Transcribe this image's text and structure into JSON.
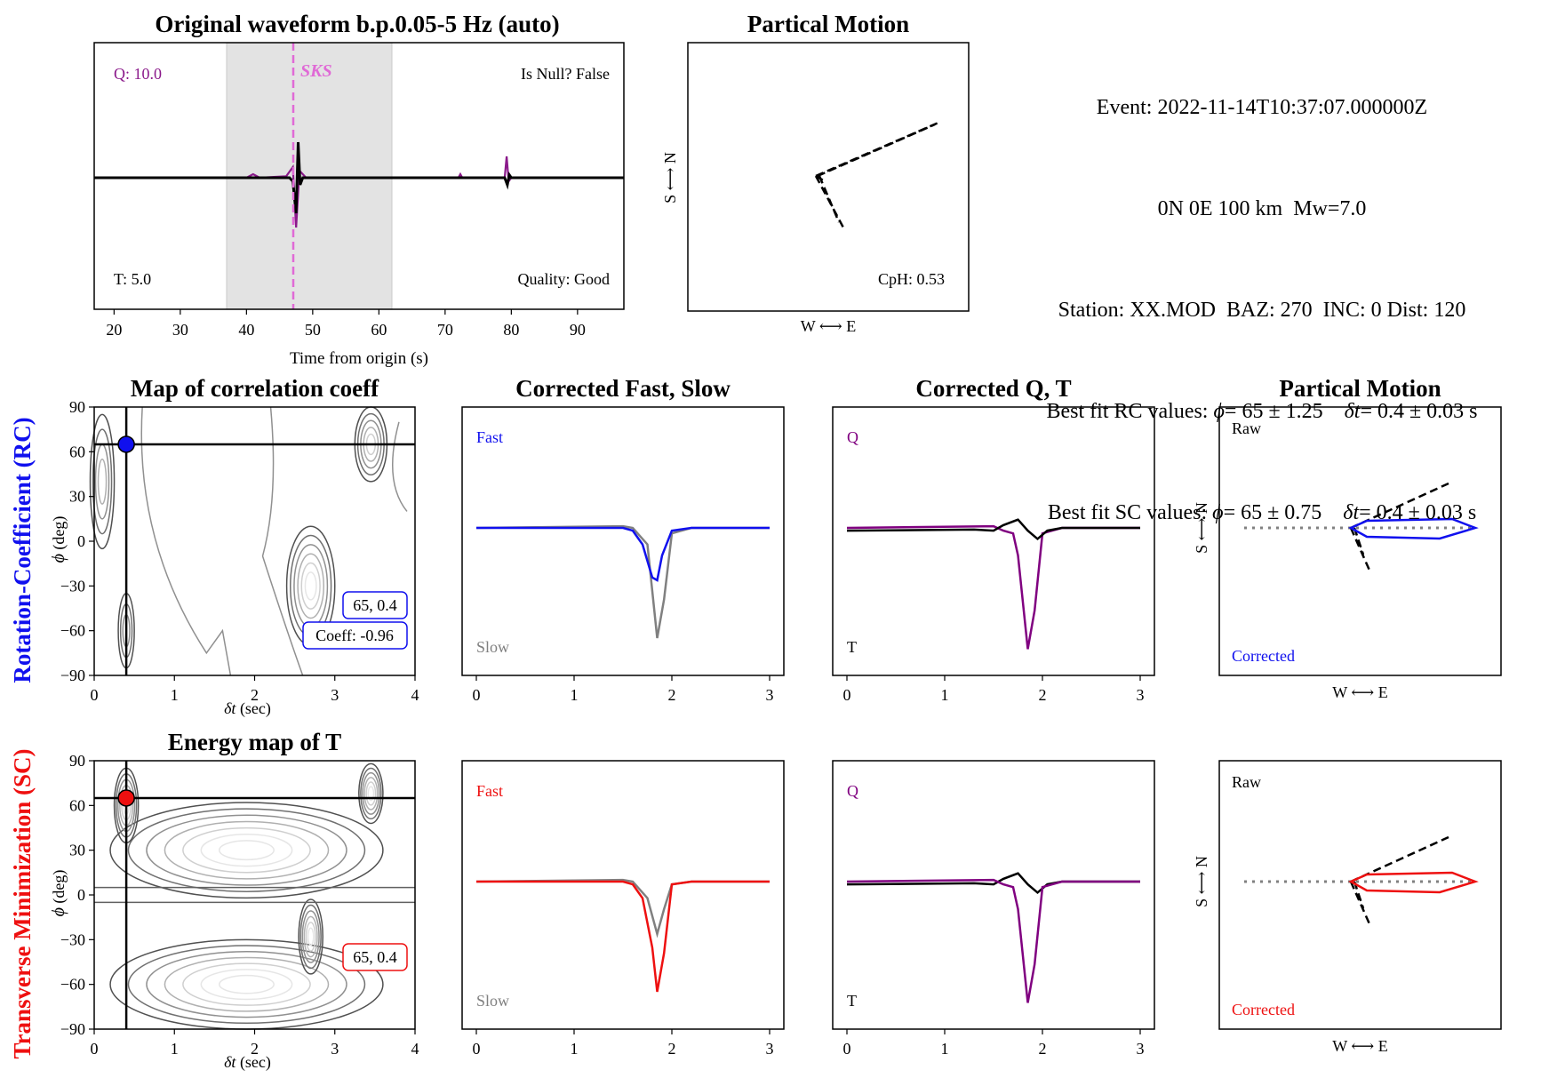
{
  "top_waveform": {
    "title": "Original waveform b.p.0.05-5 Hz (auto)",
    "xlabel": "Time from origin (s)",
    "xticks": [
      "20",
      "30",
      "40",
      "50",
      "60",
      "70",
      "80",
      "90"
    ],
    "q_label": "Q: 10.0",
    "t_label": "T: 5.0",
    "null_label": "Is Null? False",
    "quality_label": "Quality: Good",
    "phase_label": "SKS"
  },
  "top_motion": {
    "title": "Partical Motion",
    "xlabel": "W ⟷ E",
    "ylabel": "S ⟷ N",
    "cph_label": "CpH: 0.53"
  },
  "event_info": {
    "line1": "Event: 2022-11-14T10:37:07.000000Z",
    "line2": "0N 0E 100 km  Mw=7.0",
    "line3": "Station: XX.MOD  BAZ: 270  INC: 0 Dist: 120",
    "line4_prefix": "Best fit RC values: ",
    "line4_phi": "ϕ",
    "line4_mid": "= 65 ± 1.25    ",
    "line4_dt": "δt",
    "line4_end": "= 0.4 ± 0.03 s",
    "line5_prefix": "Best fit SC values: ",
    "line5_phi": "ϕ",
    "line5_mid": "= 65 ± 0.75    ",
    "line5_dt": "δt",
    "line5_end": "= 0.4 ± 0.03 s"
  },
  "rows": [
    {
      "row_label": "Rotation-Coefficient (RC)",
      "color": "#1010ee",
      "map_title": "Map of correlation coeff",
      "ylabel_phi": "ϕ",
      "ylabel_unit": "(deg)",
      "xlabel_dt": "δt",
      "xlabel_unit": "(sec)",
      "yticks": [
        "90",
        "60",
        "30",
        "0",
        "−30",
        "−60",
        "−90"
      ],
      "xticks_map": [
        "0",
        "1",
        "2",
        "3",
        "4"
      ],
      "best_box": "65, 0.4",
      "coeff_box": "Coeff: -0.96",
      "fs_title": "Corrected Fast, Slow",
      "fast_label": "Fast",
      "slow_label": "Slow",
      "qt_title": "Corrected Q, T",
      "q_label": "Q",
      "t_label": "T",
      "pm_title": "Partical Motion",
      "raw_label": "Raw",
      "corrected_label": "Corrected",
      "pm_xlabel": "W ⟷ E",
      "pm_ylabel": "S ⟷ N",
      "xticks_trace": [
        "0",
        "1",
        "2",
        "3"
      ]
    },
    {
      "row_label": "Transverse Minimization (SC)",
      "color": "#ee1010",
      "map_title": "Energy map of T",
      "ylabel_phi": "ϕ",
      "ylabel_unit": "(deg)",
      "xlabel_dt": "δt",
      "xlabel_unit": "(sec)",
      "yticks": [
        "90",
        "60",
        "30",
        "0",
        "−30",
        "−60",
        "−90"
      ],
      "xticks_map": [
        "0",
        "1",
        "2",
        "3",
        "4"
      ],
      "best_box": "65, 0.4",
      "coeff_box": "",
      "fs_title": "",
      "fast_label": "Fast",
      "slow_label": "Slow",
      "qt_title": "",
      "q_label": "Q",
      "t_label": "T",
      "pm_title": "",
      "raw_label": "Raw",
      "corrected_label": "Corrected",
      "pm_xlabel": "W ⟷ E",
      "pm_ylabel": "S ⟷ N",
      "xticks_trace": [
        "0",
        "1",
        "2",
        "3"
      ]
    }
  ],
  "chart_data": [
    {
      "type": "line",
      "title": "Original waveform b.p.0.05-5 Hz (auto)",
      "xlabel": "Time from origin (s)",
      "xlim": [
        17,
        97
      ],
      "window": [
        37,
        62
      ],
      "sks_pick": 47,
      "series": [
        {
          "name": "Q",
          "color": "#8b1a8b",
          "points": [
            [
              17,
              0
            ],
            [
              40,
              0
            ],
            [
              41,
              0.05
            ],
            [
              42,
              0
            ],
            [
              46,
              0.02
            ],
            [
              47,
              0.15
            ],
            [
              47.5,
              -0.7
            ],
            [
              48,
              0.1
            ],
            [
              49,
              0
            ],
            [
              72,
              0
            ],
            [
              72.3,
              0.05
            ],
            [
              72.6,
              0
            ],
            [
              79,
              0
            ],
            [
              79.3,
              0.3
            ],
            [
              79.6,
              -0.05
            ],
            [
              80,
              0
            ],
            [
              97,
              0
            ]
          ]
        },
        {
          "name": "T",
          "color": "#000000",
          "points": [
            [
              17,
              0
            ],
            [
              46.5,
              0
            ],
            [
              47,
              -0.05
            ],
            [
              47.5,
              -0.5
            ],
            [
              47.8,
              0.5
            ],
            [
              48.1,
              -0.1
            ],
            [
              48.5,
              0
            ],
            [
              79,
              0
            ],
            [
              79.4,
              -0.1
            ],
            [
              79.7,
              0.04
            ],
            [
              80,
              0
            ],
            [
              97,
              0
            ]
          ]
        }
      ]
    },
    {
      "type": "line",
      "title": "Partical Motion",
      "series": [
        {
          "name": "raw",
          "style": "dashed",
          "points": [
            [
              0,
              0
            ],
            [
              0.9,
              0.45
            ],
            [
              0.05,
              -0.02
            ],
            [
              0.2,
              -0.4
            ],
            [
              0.05,
              -0.05
            ],
            [
              0,
              0
            ]
          ]
        }
      ]
    },
    {
      "type": "heatmap",
      "title": "Map of correlation coeff",
      "xlabel": "δt (sec)",
      "ylabel": "ϕ (deg)",
      "xlim": [
        0,
        4
      ],
      "ylim": [
        -90,
        90
      ],
      "best": {
        "dt": 0.4,
        "phi": 65
      },
      "coeff": -0.96
    },
    {
      "type": "line",
      "title": "Corrected Fast, Slow",
      "xlim": [
        0,
        3
      ],
      "series": [
        {
          "name": "Fast",
          "color": "#1010ee",
          "points": [
            [
              0,
              0
            ],
            [
              1.5,
              0
            ],
            [
              1.6,
              -0.05
            ],
            [
              1.7,
              -0.3
            ],
            [
              1.8,
              -0.9
            ],
            [
              1.85,
              -0.95
            ],
            [
              1.9,
              -0.5
            ],
            [
              2.0,
              -0.05
            ],
            [
              2.2,
              0
            ],
            [
              3,
              0
            ]
          ]
        },
        {
          "name": "Slow",
          "color": "#808080",
          "points": [
            [
              0,
              0
            ],
            [
              1.5,
              0.03
            ],
            [
              1.6,
              0
            ],
            [
              1.75,
              -0.3
            ],
            [
              1.85,
              -2.0
            ],
            [
              1.92,
              -1.3
            ],
            [
              2.0,
              -0.1
            ],
            [
              2.2,
              0
            ],
            [
              3,
              0
            ]
          ]
        }
      ]
    },
    {
      "type": "line",
      "title": "Corrected Q, T",
      "xlim": [
        0,
        3
      ],
      "series": [
        {
          "name": "Q",
          "color": "#800080",
          "points": [
            [
              0,
              0
            ],
            [
              1.5,
              0.03
            ],
            [
              1.6,
              -0.05
            ],
            [
              1.7,
              -0.1
            ],
            [
              1.75,
              -0.5
            ],
            [
              1.85,
              -2.2
            ],
            [
              1.92,
              -1.5
            ],
            [
              2.0,
              -0.1
            ],
            [
              2.1,
              -0.05
            ],
            [
              2.2,
              0
            ],
            [
              3,
              0
            ]
          ]
        },
        {
          "name": "T",
          "color": "#000000",
          "points": [
            [
              0,
              -0.05
            ],
            [
              1.3,
              -0.03
            ],
            [
              1.5,
              -0.05
            ],
            [
              1.6,
              0.05
            ],
            [
              1.75,
              0.15
            ],
            [
              1.85,
              -0.05
            ],
            [
              1.95,
              -0.2
            ],
            [
              2.05,
              -0.05
            ],
            [
              2.2,
              0
            ],
            [
              3,
              0
            ]
          ]
        }
      ]
    },
    {
      "type": "line",
      "title": "Partical Motion",
      "series": [
        {
          "name": "Raw",
          "style": "dashed"
        },
        {
          "name": "Corrected",
          "color": "#1010ee"
        }
      ]
    },
    {
      "type": "heatmap",
      "title": "Energy map of T",
      "xlabel": "δt (sec)",
      "ylabel": "ϕ (deg)",
      "xlim": [
        0,
        4
      ],
      "ylim": [
        -90,
        90
      ],
      "best": {
        "dt": 0.4,
        "phi": 65
      }
    },
    {
      "type": "line",
      "series": [
        {
          "name": "Fast",
          "color": "#ee1010",
          "points": [
            [
              0,
              0
            ],
            [
              1.5,
              0
            ],
            [
              1.6,
              -0.05
            ],
            [
              1.7,
              -0.3
            ],
            [
              1.8,
              -1.2
            ],
            [
              1.85,
              -2.0
            ],
            [
              1.92,
              -1.3
            ],
            [
              2.0,
              -0.05
            ],
            [
              2.2,
              0
            ],
            [
              3,
              0
            ]
          ]
        },
        {
          "name": "Slow",
          "color": "#808080",
          "points": [
            [
              0,
              0
            ],
            [
              1.5,
              0.03
            ],
            [
              1.6,
              0
            ],
            [
              1.75,
              -0.3
            ],
            [
              1.85,
              -0.95
            ],
            [
              1.92,
              -0.5
            ],
            [
              2.0,
              -0.05
            ],
            [
              2.2,
              0
            ],
            [
              3,
              0
            ]
          ]
        }
      ]
    },
    {
      "type": "line",
      "series": [
        {
          "name": "Q",
          "color": "#800080"
        },
        {
          "name": "T",
          "color": "#000000"
        }
      ]
    },
    {
      "type": "line",
      "series": [
        {
          "name": "Raw",
          "style": "dashed"
        },
        {
          "name": "Corrected",
          "color": "#ee1010"
        }
      ]
    }
  ]
}
